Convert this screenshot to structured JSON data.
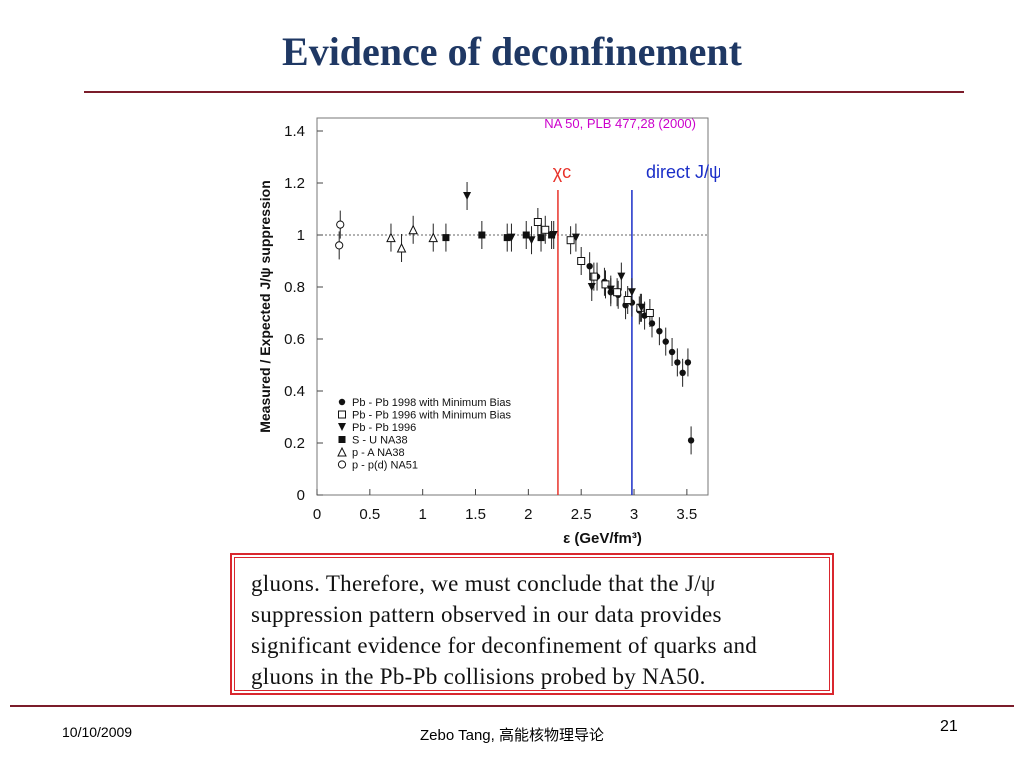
{
  "slide": {
    "title": "Evidence of deconfinement",
    "quote_lines": [
      "gluons. Therefore, we must conclude that the J/ψ",
      "suppression pattern observed in our data provides",
      "significant evidence for deconfinement of quarks and",
      "gluons in the Pb-Pb collisions probed by NA50."
    ],
    "footer": {
      "date": "10/10/2009",
      "author": "Zebo Tang, 高能核物理导论",
      "page": "21"
    }
  },
  "chart_data": {
    "type": "scatter",
    "xlabel": "ε  (GeV/fm³)",
    "ylabel": "Measured / Expected  J/ψ suppression",
    "xlim": [
      0,
      3.7
    ],
    "ylim": [
      0,
      1.45
    ],
    "xticks": [
      0,
      0.5,
      1,
      1.5,
      2,
      2.5,
      3,
      3.5
    ],
    "xtick_labels": [
      "0",
      "0.5",
      "1",
      "1.5",
      "2",
      "2.5",
      "3",
      "3.5"
    ],
    "yticks": [
      0,
      0.2,
      0.4,
      0.6,
      0.8,
      1,
      1.2,
      1.4
    ],
    "ytick_labels": [
      "0",
      "0.2",
      "0.4",
      "0.6",
      "0.8",
      "1",
      "1.2",
      "1.4"
    ],
    "reference_line_y": 1,
    "annotation": {
      "text": "NA 50, PLB 477,28 (2000)",
      "color": "#cc00cc"
    },
    "vlines": [
      {
        "label": "χc",
        "x": 2.28,
        "color": "#e8322a"
      },
      {
        "label": "direct J/ψ",
        "x": 2.98,
        "color": "#1a2ec8"
      }
    ],
    "legend_position": "bottom-left",
    "series": [
      {
        "name": "Pb - Pb 1998 with Minimum Bias",
        "marker": "filled-circle",
        "x": [
          2.58,
          2.65,
          2.72,
          2.78,
          2.85,
          2.92,
          2.98,
          3.05,
          3.1,
          3.17,
          3.24,
          3.3,
          3.36,
          3.41,
          3.46,
          3.51,
          3.54
        ],
        "y": [
          0.88,
          0.84,
          0.82,
          0.78,
          0.77,
          0.73,
          0.74,
          0.71,
          0.69,
          0.66,
          0.63,
          0.59,
          0.55,
          0.51,
          0.47,
          0.51,
          0.21
        ]
      },
      {
        "name": "Pb - Pb 1996 with Minimum Bias",
        "marker": "open-square",
        "x": [
          2.09,
          2.16,
          2.4,
          2.5,
          2.62,
          2.73,
          2.84,
          2.94,
          3.06,
          3.15
        ],
        "y": [
          1.05,
          1.02,
          0.98,
          0.9,
          0.84,
          0.81,
          0.78,
          0.75,
          0.72,
          0.7
        ]
      },
      {
        "name": "Pb - Pb 1996",
        "marker": "filled-triangle-down",
        "x": [
          1.42,
          1.84,
          2.03,
          2.24,
          2.45,
          2.6,
          2.78,
          2.88,
          2.98,
          3.07
        ],
        "y": [
          1.15,
          0.99,
          0.98,
          1.0,
          0.99,
          0.8,
          0.79,
          0.84,
          0.78,
          0.72
        ]
      },
      {
        "name": "S - U      NA38",
        "marker": "filled-square",
        "x": [
          1.22,
          1.56,
          1.8,
          1.98,
          2.12,
          2.22
        ],
        "y": [
          0.99,
          1.0,
          0.99,
          1.0,
          0.99,
          1.0
        ]
      },
      {
        "name": "p - A      NA38",
        "marker": "open-triangle-up",
        "x": [
          0.7,
          0.8,
          0.91,
          1.1
        ],
        "y": [
          0.99,
          0.95,
          1.02,
          0.99
        ]
      },
      {
        "name": "p - p(d)  NA51",
        "marker": "open-circle",
        "x": [
          0.21,
          0.22
        ],
        "y": [
          0.96,
          1.04
        ]
      }
    ]
  }
}
